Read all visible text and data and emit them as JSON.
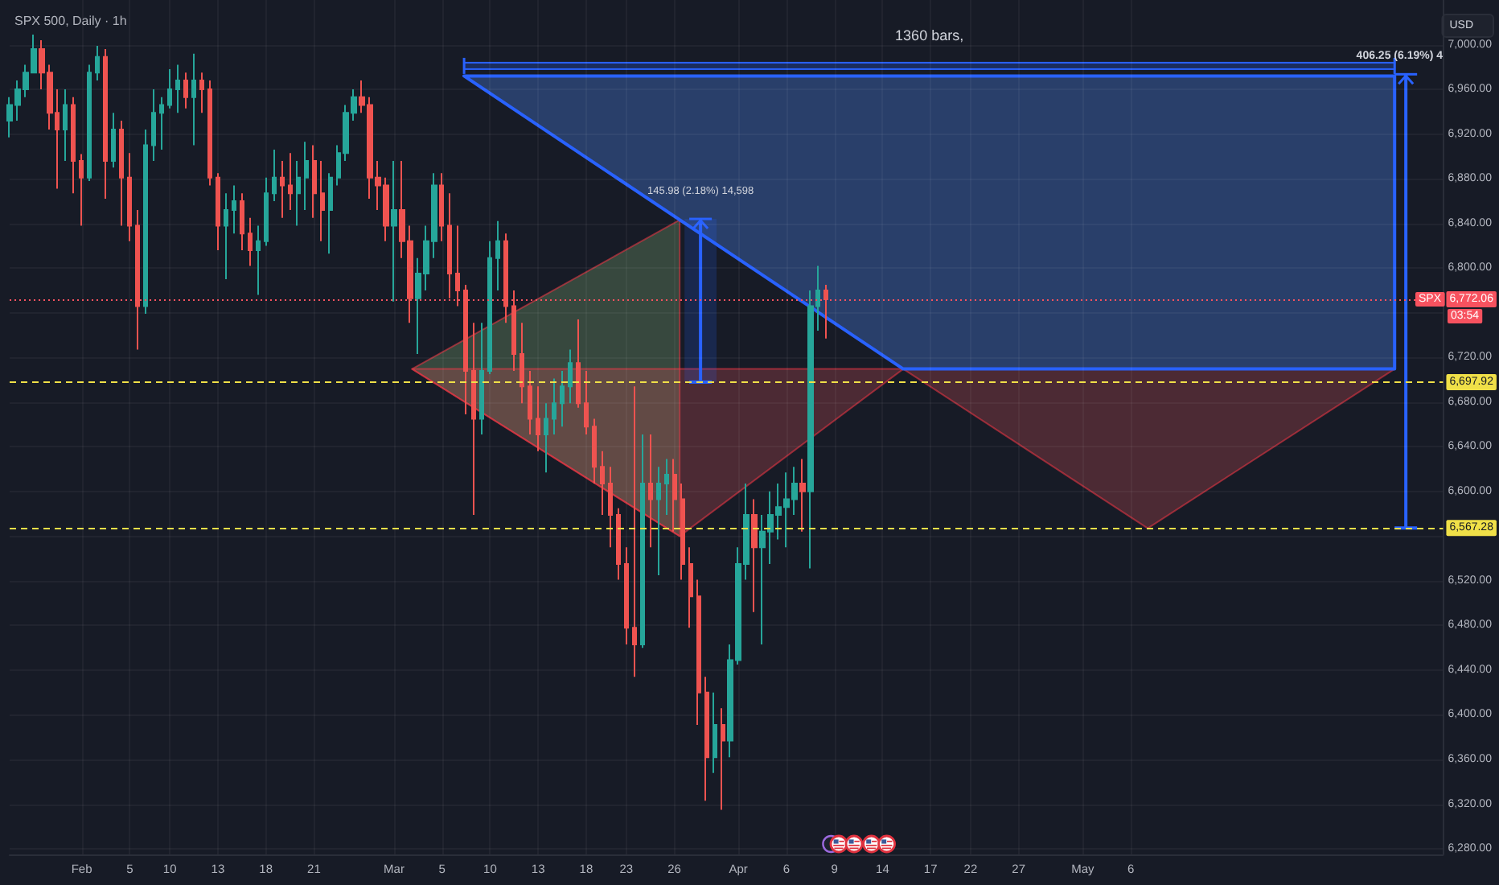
{
  "chart_data": {
    "type": "candlestick",
    "title": "SPX 500, Daily · 1h",
    "ylabel": "USD",
    "categories": [
      null,
      null,
      null,
      null,
      null,
      null,
      null,
      null,
      null,
      "Feb",
      null,
      null,
      null,
      null,
      null,
      "5",
      null,
      null,
      null,
      null,
      "10",
      null,
      null,
      null,
      null,
      null,
      "13",
      null,
      null,
      null,
      null,
      null,
      "18",
      null,
      null,
      null,
      null,
      null,
      "21",
      null,
      null,
      null,
      null,
      null,
      null,
      null,
      null,
      null,
      "Mar",
      null,
      null,
      null,
      null,
      null,
      "5",
      null,
      null,
      null,
      null,
      null,
      "10",
      null,
      null,
      null,
      null,
      null,
      "13",
      null,
      null,
      null,
      null,
      null,
      "18",
      null,
      null,
      null,
      null,
      "23",
      null,
      null,
      null,
      null,
      null,
      "26",
      null,
      null,
      null,
      null,
      null,
      null,
      null,
      "Apr",
      null,
      null,
      null,
      null,
      null,
      "6",
      null,
      null,
      null,
      null,
      null,
      "9",
      null,
      null,
      null,
      null,
      null,
      "14",
      null,
      null,
      null,
      null,
      null,
      "17",
      null,
      null,
      null,
      null,
      "22",
      null,
      null,
      null,
      null,
      null,
      "27",
      null,
      null,
      null,
      null,
      null,
      null,
      null,
      "May",
      null,
      null,
      null,
      null,
      null,
      "6",
      null,
      null,
      null,
      null,
      null,
      null,
      null,
      null,
      null,
      null,
      null,
      null,
      null,
      null,
      null,
      null,
      null,
      null,
      null,
      null,
      null,
      null,
      null,
      null,
      null,
      null,
      null,
      null,
      null,
      null,
      null,
      null,
      null,
      null,
      null,
      null,
      null,
      null,
      null
    ],
    "ohlc": [
      [
        6932,
        6953,
        6917,
        6946
      ],
      [
        6946,
        6968,
        6932,
        6960
      ],
      [
        6960,
        6982,
        6953,
        6975
      ],
      [
        6975,
        7009,
        6975,
        6996
      ],
      [
        6996,
        7004,
        6960,
        6975
      ],
      [
        6975,
        6982,
        6924,
        6939
      ],
      [
        6939,
        6960,
        6871,
        6924
      ],
      [
        6924,
        6960,
        6896,
        6946
      ],
      [
        6946,
        6953,
        6867,
        6896
      ],
      [
        6896,
        6902,
        6838,
        6881
      ],
      [
        6881,
        6982,
        6878,
        6975
      ],
      [
        6975,
        6999,
        6968,
        6989
      ],
      [
        6989,
        6996,
        6862,
        6896
      ],
      [
        6896,
        6939,
        6890,
        6924
      ],
      [
        6924,
        6932,
        6838,
        6881
      ],
      [
        6881,
        6903,
        6824,
        6838
      ],
      [
        6838,
        6852,
        6727,
        6766
      ],
      [
        6766,
        6924,
        6759,
        6910
      ],
      [
        6910,
        6960,
        6896,
        6939
      ],
      [
        6939,
        6953,
        6906,
        6946
      ],
      [
        6946,
        6978,
        6943,
        6960
      ],
      [
        6960,
        6982,
        6939,
        6968
      ],
      [
        6968,
        6975,
        6943,
        6953
      ],
      [
        6953,
        6992,
        6910,
        6968
      ],
      [
        6968,
        6975,
        6939,
        6960
      ],
      [
        6960,
        6968,
        6874,
        6881
      ],
      [
        6881,
        6885,
        6816,
        6838
      ],
      [
        6838,
        6867,
        6790,
        6852
      ],
      [
        6852,
        6874,
        6831,
        6860
      ],
      [
        6860,
        6867,
        6816,
        6831
      ],
      [
        6831,
        6845,
        6802,
        6816
      ],
      [
        6816,
        6838,
        6776,
        6824
      ],
      [
        6824,
        6881,
        6820,
        6867
      ],
      [
        6867,
        6906,
        6860,
        6881
      ],
      [
        6881,
        6896,
        6845,
        6874
      ],
      [
        6874,
        6903,
        6852,
        6867
      ],
      [
        6867,
        6896,
        6838,
        6881
      ],
      [
        6881,
        6913,
        6852,
        6896
      ],
      [
        6896,
        6910,
        6845,
        6867
      ],
      [
        6867,
        6896,
        6824,
        6852
      ],
      [
        6852,
        6885,
        6813,
        6881
      ],
      [
        6881,
        6910,
        6874,
        6903
      ],
      [
        6903,
        6946,
        6896,
        6939
      ],
      [
        6939,
        6960,
        6932,
        6953
      ],
      [
        6953,
        6968,
        6939,
        6946
      ],
      [
        6946,
        6953,
        6862,
        6881
      ],
      [
        6881,
        6896,
        6852,
        6874
      ],
      [
        6874,
        6881,
        6824,
        6838
      ],
      [
        6838,
        6896,
        6770,
        6852
      ],
      [
        6852,
        6896,
        6809,
        6824
      ],
      [
        6824,
        6838,
        6751,
        6773
      ],
      [
        6773,
        6809,
        6723,
        6795
      ],
      [
        6795,
        6838,
        6780,
        6824
      ],
      [
        6824,
        6885,
        6809,
        6874
      ],
      [
        6874,
        6885,
        6824,
        6838
      ],
      [
        6838,
        6867,
        6773,
        6795
      ],
      [
        6795,
        6838,
        6766,
        6780
      ],
      [
        6780,
        6785,
        6669,
        6708
      ],
      [
        6708,
        6751,
        6579,
        6665
      ],
      [
        6665,
        6751,
        6651,
        6708
      ],
      [
        6708,
        6824,
        6705,
        6809
      ],
      [
        6809,
        6842,
        6780,
        6824
      ],
      [
        6824,
        6831,
        6751,
        6766
      ],
      [
        6766,
        6780,
        6708,
        6723
      ],
      [
        6723,
        6751,
        6679,
        6694
      ],
      [
        6694,
        6708,
        6651,
        6665
      ],
      [
        6665,
        6694,
        6636,
        6651
      ],
      [
        6651,
        6679,
        6617,
        6665
      ],
      [
        6665,
        6701,
        6651,
        6679
      ],
      [
        6679,
        6708,
        6658,
        6694
      ],
      [
        6694,
        6727,
        6679,
        6715
      ],
      [
        6715,
        6754,
        6675,
        6679
      ],
      [
        6679,
        6708,
        6651,
        6658
      ],
      [
        6658,
        6665,
        6607,
        6622
      ],
      [
        6622,
        6636,
        6579,
        6607
      ],
      [
        6607,
        6622,
        6550,
        6579
      ],
      [
        6579,
        6585,
        6521,
        6535
      ],
      [
        6535,
        6550,
        6463,
        6478
      ],
      [
        6478,
        6694,
        6434,
        6463
      ],
      [
        6463,
        6651,
        6460,
        6607
      ],
      [
        6607,
        6651,
        6550,
        6593
      ],
      [
        6593,
        6622,
        6525,
        6607
      ],
      [
        6607,
        6629,
        6579,
        6615
      ],
      [
        6615,
        6629,
        6564,
        6593
      ],
      [
        6593,
        6607,
        6521,
        6535
      ],
      [
        6535,
        6550,
        6478,
        6506
      ],
      [
        6506,
        6521,
        6391,
        6420
      ],
      [
        6420,
        6434,
        6323,
        6362
      ],
      [
        6362,
        6420,
        6348,
        6391
      ],
      [
        6391,
        6406,
        6315,
        6377
      ],
      [
        6377,
        6463,
        6362,
        6449
      ],
      [
        6449,
        6550,
        6445,
        6535
      ],
      [
        6535,
        6607,
        6521,
        6579
      ],
      [
        6579,
        6593,
        6492,
        6550
      ],
      [
        6550,
        6579,
        6463,
        6564
      ],
      [
        6564,
        6600,
        6535,
        6579
      ],
      [
        6579,
        6607,
        6557,
        6586
      ],
      [
        6586,
        6617,
        6550,
        6593
      ],
      [
        6593,
        6622,
        6579,
        6607
      ],
      [
        6607,
        6629,
        6564,
        6600
      ],
      [
        6600,
        6780,
        6531,
        6766
      ],
      [
        6766,
        6802,
        6744,
        6780
      ],
      [
        6780,
        6785,
        6737,
        6772.06
      ],
      null,
      null,
      null,
      null,
      null,
      null,
      null,
      null,
      null,
      null,
      null,
      null,
      null,
      null,
      null,
      null,
      null,
      null,
      null,
      null,
      null,
      null,
      null,
      null,
      null,
      null,
      null,
      null,
      null,
      null,
      null,
      null,
      null,
      null,
      null,
      null,
      null,
      null,
      null,
      null,
      null,
      null,
      null,
      null,
      null,
      null,
      null,
      null,
      null,
      null,
      null,
      null,
      null,
      null,
      null,
      null,
      null,
      null,
      null,
      null,
      null,
      null,
      null,
      null,
      null,
      null,
      null,
      null,
      null,
      null,
      null,
      null,
      null,
      null,
      null,
      null,
      null
    ],
    "colors": [
      "#26a69a",
      "#26a69a",
      "#26a69a",
      "#26a69a",
      "#ef5350",
      "#ef5350",
      "#ef5350",
      "#26a69a",
      "#ef5350",
      "#ef5350",
      "#26a69a",
      "#26a69a",
      "#ef5350",
      "#26a69a",
      "#ef5350",
      "#ef5350",
      "#ef5350",
      "#26a69a",
      "#26a69a",
      "#26a69a",
      "#26a69a",
      "#26a69a",
      "#ef5350",
      "#26a69a",
      "#ef5350",
      "#ef5350",
      "#ef5350",
      "#26a69a",
      "#26a69a",
      "#ef5350",
      "#ef5350",
      "#26a69a",
      "#26a69a",
      "#26a69a",
      "#ef5350",
      "#ef5350",
      "#26a69a",
      "#26a69a",
      "#ef5350",
      "#ef5350",
      "#26a69a",
      "#26a69a",
      "#26a69a",
      "#26a69a",
      "#ef5350",
      "#ef5350",
      "#ef5350",
      "#ef5350",
      "#26a69a",
      "#ef5350",
      "#ef5350",
      "#26a69a",
      "#26a69a",
      "#26a69a",
      "#ef5350",
      "#ef5350",
      "#ef5350",
      "#ef5350",
      "#ef5350",
      "#26a69a",
      "#26a69a",
      "#26a69a",
      "#ef5350",
      "#ef5350",
      "#ef5350",
      "#ef5350",
      "#ef5350",
      "#26a69a",
      "#26a69a",
      "#26a69a",
      "#26a69a",
      "#ef5350",
      "#ef5350",
      "#ef5350",
      "#ef5350",
      "#ef5350",
      "#ef5350",
      "#ef5350",
      "#ef5350",
      "#26a69a",
      "#ef5350",
      "#26a69a",
      "#26a69a",
      "#ef5350",
      "#ef5350",
      "#ef5350",
      "#ef5350",
      "#ef5350",
      "#26a69a",
      "#ef5350",
      "#26a69a",
      "#26a69a",
      "#26a69a",
      "#ef5350",
      "#26a69a",
      "#26a69a",
      "#26a69a",
      "#26a69a",
      "#26a69a",
      "#ef5350",
      "#26a69a",
      "#26a69a",
      "#ef5350",
      null,
      null,
      null,
      null,
      null,
      null,
      null,
      null,
      null,
      null,
      null,
      null,
      null,
      null,
      null,
      null,
      null,
      null,
      null,
      null,
      null,
      null,
      null,
      null,
      null,
      null,
      null,
      null,
      null,
      null,
      null,
      null,
      null,
      null,
      null,
      null,
      null,
      null,
      null,
      null,
      null,
      null,
      null,
      null,
      null,
      null,
      null,
      null,
      null,
      null,
      null,
      null,
      null,
      null,
      null,
      null,
      null,
      null,
      null,
      null,
      null,
      null,
      null,
      null,
      null,
      null,
      null,
      null,
      null,
      null,
      null,
      null,
      null,
      null,
      null,
      null,
      null
    ],
    "ylim": [
      6275,
      7040
    ],
    "yticks": [
      {
        "value": 6280,
        "label": "6,280.00"
      },
      {
        "value": 6320,
        "label": "6,320.00"
      },
      {
        "value": 6360,
        "label": "6,360.00"
      },
      {
        "value": 6400,
        "label": "6,400.00"
      },
      {
        "value": 6440,
        "label": "6,440.00"
      },
      {
        "value": 6480,
        "label": "6,480.00"
      },
      {
        "value": 6520,
        "label": "6,520.00"
      },
      {
        "value": 6560,
        "label": null
      },
      {
        "value": 6600,
        "label": "6,600.00"
      },
      {
        "value": 6640,
        "label": "6,640.00"
      },
      {
        "value": 6680,
        "label": "6,680.00"
      },
      {
        "value": 6720,
        "label": "6,720.00"
      },
      {
        "value": 6760,
        "label": null
      },
      {
        "value": 6800,
        "label": "6,800.00"
      },
      {
        "value": 6840,
        "label": "6,840.00"
      },
      {
        "value": 6880,
        "label": "6,880.00"
      },
      {
        "value": 6920,
        "label": "6,920.00"
      },
      {
        "value": 6960,
        "label": "6,960.00"
      },
      {
        "value": 7000,
        "label": "7,000.00"
      }
    ],
    "grid": true,
    "ref_lines": [
      {
        "axis": "y",
        "value": 6697.92,
        "label": "6,697.92",
        "color": "#f0e048",
        "line_style": "dashed"
      },
      {
        "axis": "y",
        "value": 6567.28,
        "label": "6,567.28",
        "color": "#f0e048",
        "line_style": "dashed"
      },
      {
        "axis": "y",
        "value": 6772.06,
        "label": "6,772.06",
        "color": "#f7525f",
        "line_style": "dotted"
      }
    ],
    "annotations": [
      "1360 bars,",
      {
        "text": "406.25 (6.19%) 4",
        "y": 6567.28
      },
      "145.98 (2.18%) 14,598",
      {
        "text": "SPX",
        "y": 6772.06
      },
      "03:54"
    ]
  }
}
